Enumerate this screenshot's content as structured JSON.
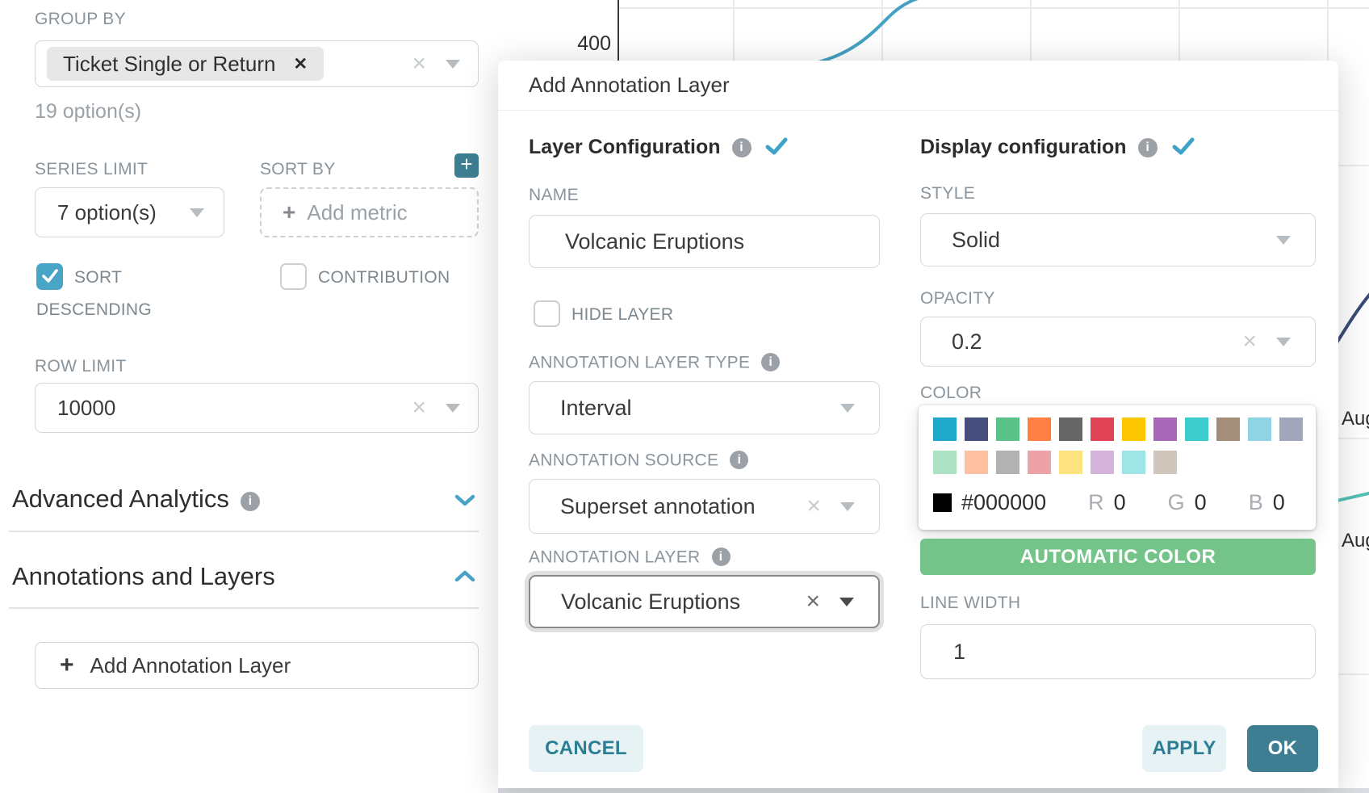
{
  "background": {
    "y_tick": "400",
    "x_labels": [
      "Aug",
      "Aug"
    ],
    "line_colors": {
      "blue": "#45A1C1",
      "navy": "#3B4A77",
      "teal": "#56C0B7"
    }
  },
  "theme": {
    "primary_teal": "#3D7E92",
    "checkbox_blue": "#48A5C6",
    "chevron_blue": "#4BA3C8",
    "success_green": "#74C48A",
    "light_button_bg": "#E7F2F5"
  },
  "icons": {
    "info": "i",
    "clear": "×",
    "tag_remove": "✕",
    "plus": "+"
  },
  "left_panel": {
    "group_by": {
      "label": "GROUP BY",
      "tag": "Ticket Single or Return",
      "helper": "19 option(s)"
    },
    "series_limit": {
      "label": "SERIES LIMIT",
      "value": "7 option(s)"
    },
    "sort_by": {
      "label": "SORT BY",
      "placeholder": "Add metric"
    },
    "sort_descending": {
      "label": "SORT DESCENDING",
      "checked": true
    },
    "contribution": {
      "label": "CONTRIBUTION",
      "checked": false
    },
    "row_limit": {
      "label": "ROW LIMIT",
      "value": "10000"
    },
    "advanced_analytics": "Advanced Analytics",
    "annotations_and_layers": "Annotations and Layers",
    "add_annotation_layer_button": "Add Annotation Layer"
  },
  "modal": {
    "title": "Add Annotation Layer",
    "layer_configuration": {
      "heading": "Layer Configuration",
      "name": {
        "label": "NAME",
        "value": "Volcanic Eruptions"
      },
      "hide_layer": {
        "label": "HIDE LAYER",
        "checked": false
      },
      "annotation_layer_type": {
        "label": "ANNOTATION LAYER TYPE",
        "value": "Interval"
      },
      "annotation_source": {
        "label": "ANNOTATION SOURCE",
        "value": "Superset annotation"
      },
      "annotation_layer": {
        "label": "ANNOTATION LAYER",
        "value": "Volcanic Eruptions"
      }
    },
    "display_configuration": {
      "heading": "Display configuration",
      "style": {
        "label": "STYLE",
        "value": "Solid"
      },
      "opacity": {
        "label": "OPACITY",
        "value": "0.2"
      },
      "color": {
        "label": "COLOR"
      },
      "color_picker": {
        "swatches_row1": [
          "#1FA8C9",
          "#454E7C",
          "#5AC189",
          "#FF7F44",
          "#666666",
          "#E04355",
          "#FCC700",
          "#A868B7",
          "#3CCCCB",
          "#A38F79",
          "#8FD3E4",
          "#A1A6BD"
        ],
        "swatches_row2": [
          "#ACE1C4",
          "#FEC0A1",
          "#B2B2B2",
          "#EFA1AA",
          "#FDE380",
          "#D3B3DA",
          "#9EE5E5",
          "#D1C6BC"
        ],
        "selected_hex": "#000000",
        "r_label": "R",
        "r_value": "0",
        "g_label": "G",
        "g_value": "0",
        "b_label": "B",
        "b_value": "0"
      },
      "automatic_color_button": "AUTOMATIC COLOR",
      "line_width": {
        "label": "LINE WIDTH",
        "value": "1"
      }
    },
    "footer": {
      "cancel": "CANCEL",
      "apply": "APPLY",
      "ok": "OK"
    }
  }
}
